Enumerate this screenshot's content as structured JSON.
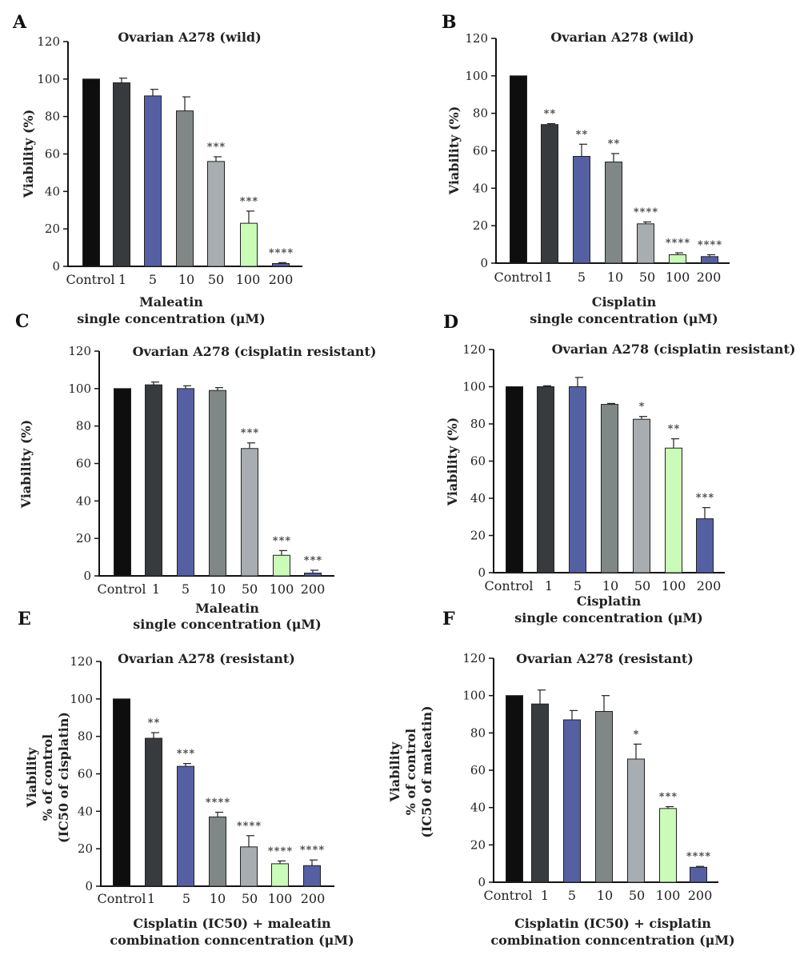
{
  "colors": {
    "control": "#0e0e0e",
    "c1": "#383b3d",
    "c5": "#5560a3",
    "c10": "#7f8886",
    "c50": "#a8adb1",
    "c100": "#cafbb8",
    "c200": "#5560a3"
  },
  "chart_data": [
    {
      "letter": "A",
      "type": "bar",
      "title": "Ovarian A278 (wild)",
      "ylabel_lines": [
        "Viability (%)"
      ],
      "xlabel_lines": [
        "Maleatin",
        "single concentration (μM)"
      ],
      "categories": [
        "Control",
        "1",
        "5",
        "10",
        "50",
        "100",
        "200"
      ],
      "values": [
        100,
        98,
        91,
        83,
        56,
        23,
        1.5
      ],
      "errors": [
        0,
        2.5,
        3.5,
        7.5,
        2.5,
        6.5,
        0.5
      ],
      "significance": [
        "",
        "",
        "",
        "",
        "***",
        "***",
        "****"
      ],
      "ylim": [
        0,
        120
      ],
      "yticks": [
        0,
        20,
        40,
        60,
        80,
        100,
        120
      ]
    },
    {
      "letter": "B",
      "type": "bar",
      "title": "Ovarian A278 (wild)",
      "ylabel_lines": [
        "Viability (%)"
      ],
      "xlabel_lines": [
        "Cisplatin",
        "single concentration (μM)"
      ],
      "categories": [
        "Control",
        "1",
        "5",
        "10",
        "50",
        "100",
        "200"
      ],
      "values": [
        100,
        74,
        57,
        54,
        21,
        4.5,
        3.5
      ],
      "errors": [
        0,
        0.5,
        6.5,
        4.5,
        1,
        1,
        1
      ],
      "significance": [
        "",
        "**",
        "**",
        "**",
        "****",
        "****",
        "****"
      ],
      "ylim": [
        0,
        120
      ],
      "yticks": [
        0,
        20,
        40,
        60,
        80,
        100,
        120
      ]
    },
    {
      "letter": "C",
      "type": "bar",
      "title": "Ovarian A278 (cisplatin resistant)",
      "ylabel_lines": [
        "Viability (%)"
      ],
      "xlabel_lines": [
        "Maleatin",
        "single concentration (μM)"
      ],
      "categories": [
        "Control",
        "1",
        "5",
        "10",
        "50",
        "100",
        "200"
      ],
      "values": [
        100,
        102,
        100,
        99,
        68,
        11,
        1.5
      ],
      "errors": [
        0,
        1.5,
        1.5,
        1.5,
        3,
        2.5,
        1.5
      ],
      "significance": [
        "",
        "",
        "",
        "",
        "***",
        "***",
        "***"
      ],
      "ylim": [
        0,
        120
      ],
      "yticks": [
        0,
        20,
        40,
        60,
        80,
        100,
        120
      ]
    },
    {
      "letter": "D",
      "type": "bar",
      "title": "Ovarian A278 (cisplatin resistant)",
      "ylabel_lines": [
        "Viability (%)"
      ],
      "xlabel_lines": [
        "Cisplatin",
        "single concentration (μM)"
      ],
      "categories": [
        "Control",
        "1",
        "5",
        "10",
        "50",
        "100",
        "200"
      ],
      "values": [
        100,
        100,
        100,
        90.5,
        82.5,
        67,
        29
      ],
      "errors": [
        0,
        0.5,
        5,
        0.5,
        1.5,
        5,
        6
      ],
      "significance": [
        "",
        "",
        "",
        "",
        "*",
        "**",
        "***"
      ],
      "ylim": [
        0,
        120
      ],
      "yticks": [
        0,
        20,
        40,
        60,
        80,
        100,
        120
      ]
    },
    {
      "letter": "E",
      "type": "bar",
      "title": "Ovarian A278 (resistant)",
      "ylabel_lines": [
        "Viability",
        "% of control",
        "(IC50 of cisplatin)"
      ],
      "xlabel_lines": [
        "Cisplatin (IC50) + maleatin",
        "combination conncentration (μM)"
      ],
      "categories": [
        "Control",
        "1",
        "5",
        "10",
        "50",
        "100",
        "200"
      ],
      "values": [
        100,
        79,
        64,
        37,
        21,
        12,
        11
      ],
      "errors": [
        0,
        3,
        1.5,
        2.5,
        6,
        1.5,
        3
      ],
      "significance": [
        "",
        "**",
        "***",
        "****",
        "****",
        "****",
        "****"
      ],
      "ylim": [
        0,
        120
      ],
      "yticks": [
        0,
        20,
        40,
        60,
        80,
        100,
        120
      ]
    },
    {
      "letter": "F",
      "type": "bar",
      "title": "Ovarian A278 (resistant)",
      "ylabel_lines": [
        "Viability",
        "% of control",
        "(IC50 of maleatin)"
      ],
      "xlabel_lines": [
        "Cisplatin (IC50) + cisplatin",
        "combination conncentration (μM)"
      ],
      "categories": [
        "Control",
        "1",
        "5",
        "10",
        "50",
        "100",
        "200"
      ],
      "values": [
        100,
        95.5,
        87,
        91.5,
        66,
        39.5,
        8
      ],
      "errors": [
        0,
        7.5,
        5,
        8.5,
        8,
        1,
        0.5
      ],
      "significance": [
        "",
        "",
        "",
        "",
        "*",
        "***",
        "****"
      ],
      "ylim": [
        0,
        120
      ],
      "yticks": [
        0,
        20,
        40,
        60,
        80,
        100,
        120
      ]
    }
  ]
}
